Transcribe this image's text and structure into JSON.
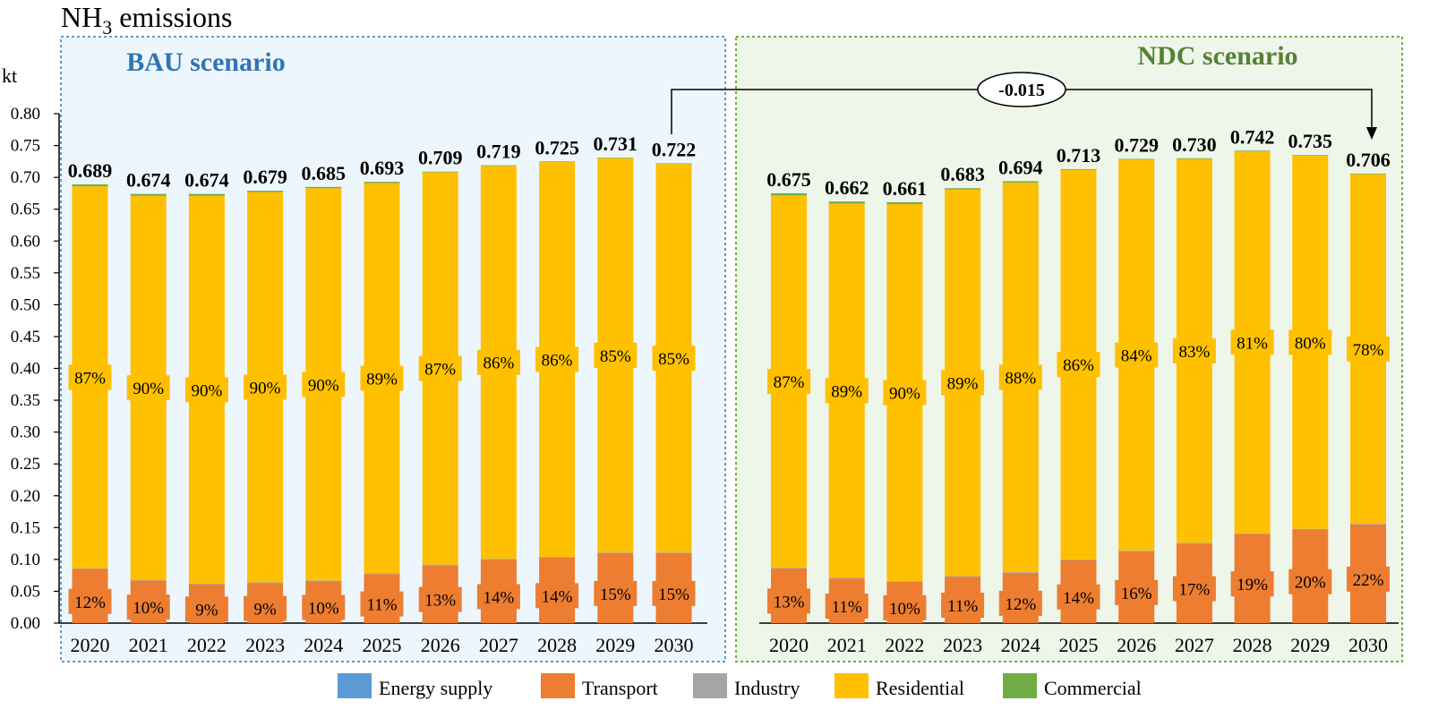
{
  "title_main": "NH",
  "title_sub": "3",
  "title_rest": " emissions",
  "unit": "kt",
  "annotation": "-0.015",
  "colors": {
    "Energy supply": "#5b9bd5",
    "Transport": "#ed7d31",
    "Industry": "#a5a5a5",
    "Residential": "#ffc000",
    "Commercial": "#70ad47",
    "bau_bg": "#eef6fd",
    "bau_border": "#5b9bd5",
    "bau_title": "#2e75b6",
    "ndc_bg": "#eef5e9",
    "ndc_border": "#70ad47",
    "ndc_title": "#548235"
  },
  "chart_data": {
    "type": "bar",
    "stacked": true,
    "ylabel": "kt",
    "ylim": [
      0,
      0.8
    ],
    "yticks": [
      "0.00",
      "0.05",
      "0.10",
      "0.15",
      "0.20",
      "0.25",
      "0.30",
      "0.35",
      "0.40",
      "0.45",
      "0.50",
      "0.55",
      "0.60",
      "0.65",
      "0.70",
      "0.75",
      "0.80"
    ],
    "legend": [
      "Energy supply",
      "Transport",
      "Industry",
      "Residential",
      "Commercial"
    ],
    "legend_position": "bottom",
    "panels": [
      {
        "title": "BAU scenario",
        "categories": [
          "2020",
          "2021",
          "2022",
          "2023",
          "2024",
          "2025",
          "2026",
          "2027",
          "2028",
          "2029",
          "2030"
        ],
        "totals": [
          "0.689",
          "0.674",
          "0.674",
          "0.679",
          "0.685",
          "0.693",
          "0.709",
          "0.719",
          "0.725",
          "0.731",
          "0.722"
        ],
        "series": [
          {
            "name": "Energy supply",
            "values": [
              0.0,
              0.0,
              0.0,
              0.0,
              0.0,
              0.0,
              0.0,
              0.0,
              0.0,
              0.0,
              0.0
            ]
          },
          {
            "name": "Transport",
            "values": [
              0.085,
              0.067,
              0.061,
              0.063,
              0.066,
              0.077,
              0.091,
              0.1,
              0.103,
              0.11,
              0.11
            ]
          },
          {
            "name": "Industry",
            "values": [
              0.001,
              0.001,
              0.001,
              0.001,
              0.001,
              0.001,
              0.001,
              0.001,
              0.001,
              0.001,
              0.001
            ]
          },
          {
            "name": "Residential",
            "values": [
              0.6,
              0.603,
              0.609,
              0.613,
              0.616,
              0.613,
              0.616,
              0.617,
              0.62,
              0.619,
              0.61
            ]
          },
          {
            "name": "Commercial",
            "values": [
              0.003,
              0.003,
              0.003,
              0.002,
              0.002,
              0.002,
              0.001,
              0.001,
              0.001,
              0.001,
              0.001
            ]
          }
        ],
        "transport_labels": [
          "12%",
          "10%",
          "9%",
          "9%",
          "10%",
          "11%",
          "13%",
          "14%",
          "14%",
          "15%",
          "15%"
        ],
        "residential_labels": [
          "87%",
          "90%",
          "90%",
          "90%",
          "90%",
          "89%",
          "87%",
          "86%",
          "86%",
          "85%",
          "85%"
        ]
      },
      {
        "title": "NDC scenario",
        "categories": [
          "2020",
          "2021",
          "2022",
          "2023",
          "2024",
          "2025",
          "2026",
          "2027",
          "2028",
          "2029",
          "2030"
        ],
        "totals": [
          "0.675",
          "0.662",
          "0.661",
          "0.683",
          "0.694",
          "0.713",
          "0.729",
          "0.730",
          "0.742",
          "0.735",
          "0.706"
        ],
        "series": [
          {
            "name": "Energy supply",
            "values": [
              0.0,
              0.0,
              0.0,
              0.0,
              0.0,
              0.0,
              0.0,
              0.0,
              0.0,
              0.0,
              0.0
            ]
          },
          {
            "name": "Transport",
            "values": [
              0.086,
              0.07,
              0.065,
              0.073,
              0.079,
              0.099,
              0.113,
              0.125,
              0.14,
              0.147,
              0.155
            ]
          },
          {
            "name": "Industry",
            "values": [
              0.001,
              0.001,
              0.001,
              0.001,
              0.001,
              0.001,
              0.001,
              0.001,
              0.001,
              0.001,
              0.001
            ]
          },
          {
            "name": "Residential",
            "values": [
              0.585,
              0.588,
              0.592,
              0.607,
              0.612,
              0.612,
              0.614,
              0.603,
              0.6,
              0.586,
              0.549
            ]
          },
          {
            "name": "Commercial",
            "values": [
              0.003,
              0.003,
              0.003,
              0.002,
              0.002,
              0.001,
              0.001,
              0.001,
              0.001,
              0.001,
              0.001
            ]
          }
        ],
        "transport_labels": [
          "13%",
          "11%",
          "10%",
          "11%",
          "12%",
          "14%",
          "16%",
          "17%",
          "19%",
          "20%",
          "22%"
        ],
        "residential_labels": [
          "87%",
          "89%",
          "90%",
          "89%",
          "88%",
          "86%",
          "84%",
          "83%",
          "81%",
          "80%",
          "78%"
        ]
      }
    ]
  }
}
